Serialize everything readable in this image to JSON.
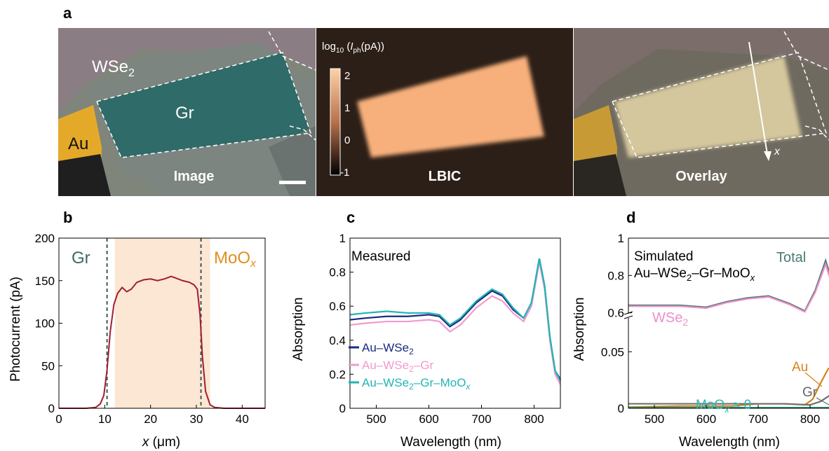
{
  "figure": {
    "panel_labels": {
      "a": "a",
      "b": "b",
      "c": "c",
      "d": "d"
    },
    "panel_a": {
      "captions": [
        "Image",
        "LBIC",
        "Overlay"
      ],
      "materials": {
        "wse2": "WSe",
        "wse2_sub": "2",
        "gr": "Gr",
        "au": "Au"
      },
      "colorbar": {
        "label_prefix": "log",
        "label_base": "10",
        "label_var": "I",
        "label_sub": "ph",
        "label_unit": "(pA))",
        "ticks": [
          "2",
          "1",
          "0",
          "-1"
        ]
      },
      "overlay_axis": "x",
      "colors": {
        "gr": "#2f6b68",
        "au": "#e5a92a",
        "lbic": "#f7b07c",
        "bg_lbic": "#2a1d15"
      }
    }
  },
  "chart_data": [
    {
      "id": "b",
      "type": "line",
      "xlabel": "x (μm)",
      "ylabel": "Photocurrent (pA)",
      "xlim": [
        0,
        45
      ],
      "ylim": [
        0,
        200
      ],
      "xticks": [
        "0",
        "10",
        "20",
        "30",
        "40"
      ],
      "yticks": [
        "0",
        "50",
        "100",
        "150",
        "200"
      ],
      "annotations": {
        "gr": "Gr",
        "moox": "MoO",
        "moox_sub": "x"
      },
      "dashed_lines_x": [
        10.5,
        31
      ],
      "shaded_region_x": [
        12.2,
        33
      ],
      "series": [
        {
          "color": "#a11d33",
          "x": [
            0,
            3,
            6,
            8,
            9,
            9.8,
            10.5,
            11.2,
            12,
            12.8,
            13.8,
            14.8,
            15.8,
            17,
            18.5,
            20,
            21.5,
            23,
            24.5,
            25.5,
            27,
            28.5,
            29.5,
            30.2,
            30.8,
            31.3,
            32,
            33,
            34,
            36,
            40,
            45
          ],
          "y": [
            0,
            0,
            0,
            1,
            5,
            15,
            45,
            90,
            122,
            135,
            142,
            137,
            140,
            148,
            151,
            152,
            150,
            152,
            155,
            153,
            150,
            148,
            145,
            140,
            110,
            62,
            20,
            4,
            1,
            0,
            0,
            0
          ]
        }
      ]
    },
    {
      "id": "c",
      "type": "line",
      "xlabel": "Wavelength (nm)",
      "ylabel": "Absorption",
      "xlim": [
        450,
        850
      ],
      "ylim": [
        0,
        1
      ],
      "xticks": [
        "500",
        "600",
        "700",
        "800"
      ],
      "yticks": [
        "0",
        "0.2",
        "0.4",
        "0.6",
        "0.8",
        "1"
      ],
      "title": "Measured",
      "series": [
        {
          "name": "Au–WSe",
          "name_sub": "2",
          "color": "#1b2a80",
          "x": [
            450,
            480,
            520,
            560,
            600,
            620,
            640,
            660,
            690,
            720,
            740,
            760,
            780,
            795,
            810,
            820,
            830,
            840,
            850
          ],
          "y": [
            0.52,
            0.53,
            0.54,
            0.54,
            0.55,
            0.54,
            0.48,
            0.52,
            0.62,
            0.69,
            0.66,
            0.58,
            0.53,
            0.62,
            0.88,
            0.72,
            0.42,
            0.22,
            0.17
          ]
        },
        {
          "name": "Au–WSe",
          "name_sub": "2",
          "name_suffix": "–Gr",
          "color": "#f29ad0",
          "x": [
            450,
            480,
            520,
            560,
            600,
            620,
            640,
            660,
            690,
            720,
            740,
            760,
            780,
            795,
            810,
            820,
            830,
            840,
            850
          ],
          "y": [
            0.49,
            0.5,
            0.51,
            0.51,
            0.52,
            0.51,
            0.45,
            0.49,
            0.59,
            0.66,
            0.63,
            0.56,
            0.51,
            0.6,
            0.86,
            0.7,
            0.4,
            0.2,
            0.14
          ]
        },
        {
          "name": "Au–WSe",
          "name_sub": "2",
          "name_suffix": "–Gr–MoO",
          "name_sub2": "x",
          "color": "#22b5b5",
          "x": [
            450,
            480,
            520,
            560,
            600,
            620,
            640,
            660,
            690,
            720,
            740,
            760,
            780,
            795,
            810,
            820,
            830,
            840,
            850
          ],
          "y": [
            0.55,
            0.56,
            0.57,
            0.56,
            0.56,
            0.55,
            0.49,
            0.53,
            0.63,
            0.7,
            0.67,
            0.59,
            0.53,
            0.62,
            0.88,
            0.72,
            0.42,
            0.22,
            0.16
          ]
        }
      ]
    },
    {
      "id": "d",
      "type": "line",
      "xlabel": "Wavelength (nm)",
      "ylabel": "Absorption",
      "xlim": [
        450,
        850
      ],
      "upper_ylim": [
        0.55,
        1
      ],
      "lower_ylim": [
        0,
        0.07
      ],
      "xticks": [
        "500",
        "600",
        "700",
        "800"
      ],
      "upper_yticks": [
        "0.6",
        "0.8",
        "1"
      ],
      "lower_yticks": [
        "0",
        "0.05"
      ],
      "title": "Simulated",
      "subtitle_parts": {
        "a": "Au–WSe",
        "sub": "2",
        "b": "–Gr–MoO",
        "sub2": "x"
      },
      "labels": {
        "total": "Total",
        "wse2": "WSe",
        "wse2_sub": "2",
        "au": "Au",
        "gr": "Gr",
        "moox": "MoO",
        "moox_sub": "x",
        "moox_suffix": " ≈ 0"
      },
      "upper_series": [
        {
          "name": "Total",
          "color": "#4a7b73",
          "x": [
            450,
            500,
            550,
            600,
            640,
            680,
            720,
            760,
            790,
            810,
            830,
            850
          ],
          "y": [
            0.64,
            0.64,
            0.64,
            0.63,
            0.66,
            0.68,
            0.69,
            0.65,
            0.61,
            0.72,
            0.88,
            0.7
          ]
        },
        {
          "name": "WSe2",
          "color": "#ee8fc9",
          "x": [
            450,
            500,
            550,
            600,
            640,
            680,
            720,
            760,
            790,
            810,
            830,
            850
          ],
          "y": [
            0.635,
            0.635,
            0.635,
            0.625,
            0.655,
            0.675,
            0.685,
            0.645,
            0.605,
            0.71,
            0.86,
            0.68
          ]
        }
      ],
      "lower_series": [
        {
          "name": "Au",
          "color": "#d9821b",
          "x": [
            450,
            550,
            650,
            700,
            750,
            790,
            805,
            820,
            835,
            850
          ],
          "y": [
            0.001,
            0.002,
            0.002,
            0.004,
            0.004,
            0.003,
            0.008,
            0.022,
            0.035,
            0.036
          ]
        },
        {
          "name": "Gr",
          "color": "#707070",
          "x": [
            450,
            550,
            650,
            750,
            800,
            820,
            840,
            850
          ],
          "y": [
            0.004,
            0.004,
            0.004,
            0.004,
            0.003,
            0.006,
            0.012,
            0.011
          ]
        },
        {
          "name": "MoOx",
          "color": "#1a8a6a",
          "x": [
            450,
            850
          ],
          "y": [
            0.0005,
            0.0005
          ]
        }
      ]
    }
  ]
}
